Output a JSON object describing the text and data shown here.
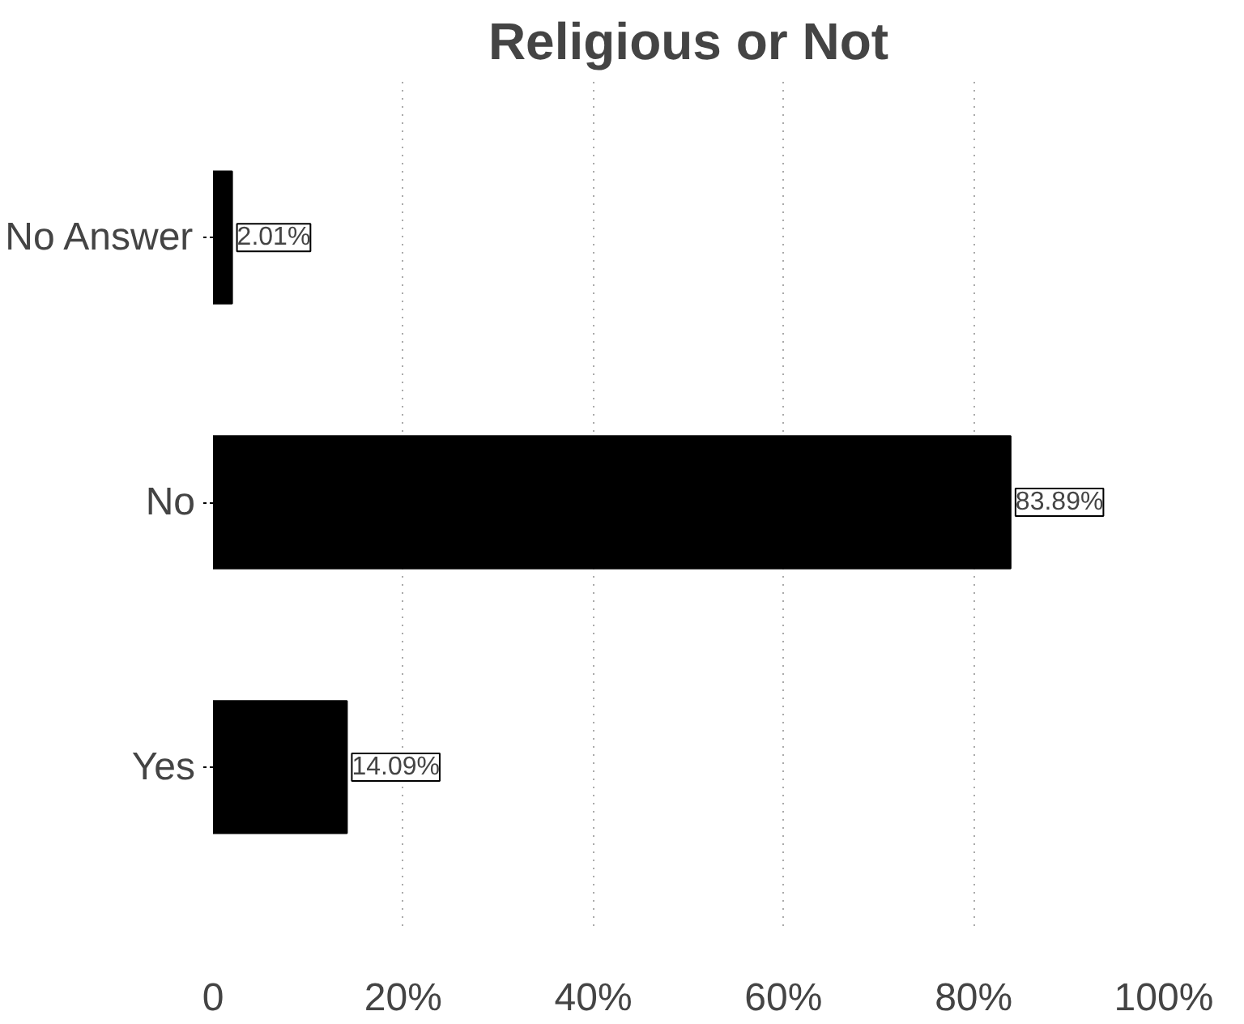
{
  "chart_data": {
    "type": "bar",
    "orientation": "horizontal",
    "title": "Religious or Not",
    "categories": [
      "No Answer",
      "No",
      "Yes"
    ],
    "values": [
      2.01,
      83.89,
      14.09
    ],
    "value_labels": [
      "2.01%",
      "83.89%",
      "14.09%"
    ],
    "color": "#000000",
    "xlim": [
      0,
      100
    ],
    "xticks": [
      0,
      {
        "value": 20,
        "label": "20%"
      },
      {
        "value": 40,
        "label": "40%"
      },
      {
        "value": 60,
        "label": "60%"
      },
      {
        "value": 80,
        "label": "80%"
      },
      {
        "value": 100,
        "label": "100%"
      }
    ],
    "grid": "x"
  }
}
